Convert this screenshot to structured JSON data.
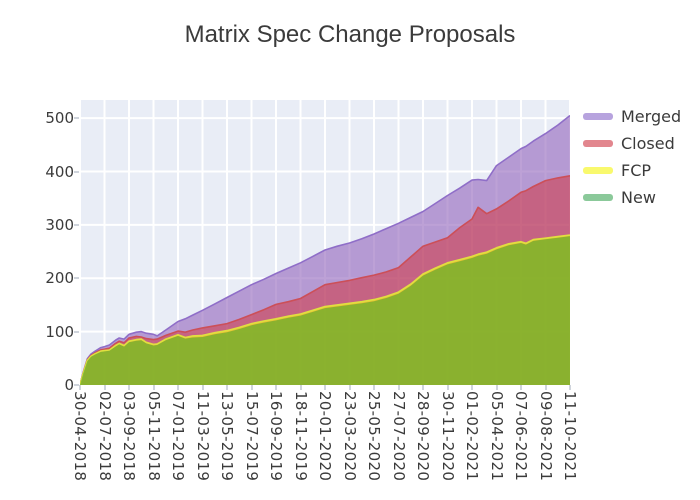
{
  "chart_data": {
    "type": "area",
    "stacked": true,
    "title": "Matrix Spec Change Proposals",
    "xlabel": "",
    "ylabel": "",
    "grid": true,
    "plot_bg": "#e9edf6",
    "gridline_color": "#ffffff",
    "legend_position": "right",
    "y_ticks": [
      0,
      100,
      200,
      300,
      400,
      500
    ],
    "y_range": [
      0,
      534
    ],
    "x_tick_labels": [
      "30-04-2018",
      "02-07-2018",
      "03-09-2018",
      "05-11-2018",
      "07-01-2019",
      "11-03-2019",
      "13-05-2019",
      "15-07-2019",
      "16-09-2019",
      "18-11-2019",
      "20-01-2020",
      "23-03-2020",
      "25-05-2020",
      "27-07-2020",
      "28-09-2020",
      "30-11-2020",
      "01-02-2021",
      "05-04-2021",
      "07-06-2021",
      "09-08-2021",
      "11-10-2021"
    ],
    "x_units_note": "x values below are in tick units 0..20 (one tick = 9 weeks); stack_tops are cumulative stacked values read from the chart",
    "x": [
      0,
      0.12,
      0.3,
      0.45,
      0.6,
      0.85,
      1.0,
      1.2,
      1.45,
      1.6,
      1.8,
      2.0,
      2.3,
      2.5,
      2.7,
      3.0,
      3.15,
      3.5,
      4.0,
      4.3,
      4.6,
      5.0,
      5.5,
      6.0,
      6.5,
      7.0,
      7.5,
      8.0,
      8.5,
      9.0,
      9.5,
      10.0,
      10.5,
      11.0,
      11.5,
      12.0,
      12.5,
      13.0,
      13.5,
      14.0,
      14.5,
      15.0,
      15.5,
      16.0,
      16.25,
      16.6,
      17.0,
      17.5,
      18.0,
      18.2,
      18.5,
      19.0,
      19.5,
      20.0
    ],
    "stack_tops": {
      "new": [
        0,
        20,
        45,
        53,
        57,
        62,
        63,
        64,
        72,
        76,
        72,
        80,
        83,
        84,
        78,
        74,
        75,
        84,
        92,
        87,
        89,
        90,
        95,
        99,
        105,
        112,
        117,
        121,
        126,
        130,
        137,
        144,
        147,
        150,
        153,
        157,
        163,
        171,
        186,
        205,
        216,
        226,
        232,
        238,
        242,
        246,
        254,
        262,
        266,
        263,
        270,
        273,
        276,
        279
      ],
      "fcp": [
        0,
        20.5,
        46,
        54,
        58,
        63.5,
        64.5,
        65.5,
        74,
        78,
        74,
        82,
        85,
        86,
        80,
        76,
        77,
        86,
        94,
        89,
        92,
        93,
        98,
        102,
        108,
        115,
        120,
        124,
        129,
        133,
        140,
        147,
        150,
        153,
        156,
        160,
        166,
        174,
        189,
        208,
        219,
        229,
        235,
        241,
        245,
        249,
        257,
        264.5,
        268.5,
        265.5,
        272.5,
        275,
        278,
        281
      ],
      "closed": [
        0,
        21,
        47,
        55.5,
        60,
        66,
        67,
        69,
        78,
        82,
        79,
        88,
        91,
        90,
        87,
        85,
        86,
        93,
        101,
        99,
        103,
        107,
        111,
        115,
        123,
        132,
        141,
        151,
        156,
        162,
        175,
        188,
        192,
        196,
        201,
        206,
        212,
        220,
        240,
        260,
        268,
        276,
        295,
        311,
        333,
        321,
        330,
        345,
        361,
        364,
        372,
        383,
        388,
        392
      ],
      "merged": [
        0,
        22,
        49,
        58,
        63,
        70,
        72,
        75,
        84,
        88,
        86,
        95,
        99,
        100,
        97,
        95,
        92,
        103,
        119,
        124,
        131,
        140,
        152,
        164,
        176,
        188,
        198,
        209,
        219,
        229,
        241,
        253,
        260,
        266,
        274,
        283,
        293,
        303,
        314,
        325,
        340,
        355,
        369,
        384,
        385,
        383,
        411,
        427,
        443,
        447,
        457,
        471,
        487,
        505
      ]
    },
    "final_values": {
      "new": 279,
      "fcp": 2,
      "closed": 111,
      "merged": 113,
      "total": 505
    },
    "series": [
      {
        "name": "Merged",
        "key": "merged",
        "fill": "#9467bd",
        "fill_opacity": 0.62,
        "line": "#8f6ec8",
        "swatch": "#b7a3de"
      },
      {
        "name": "Closed",
        "key": "closed",
        "fill": "#d62728",
        "fill_opacity": 0.47,
        "line": "#cc4f58",
        "swatch": "#e2868e"
      },
      {
        "name": "FCP",
        "key": "fcp",
        "fill": "#ffff00",
        "fill_opacity": 0.62,
        "line": "#e0e040",
        "swatch": "#f9f96d"
      },
      {
        "name": "New",
        "key": "new",
        "fill": "#2ca02c",
        "fill_opacity": 0.5,
        "line": "none",
        "swatch": "#8bc99a"
      }
    ]
  }
}
